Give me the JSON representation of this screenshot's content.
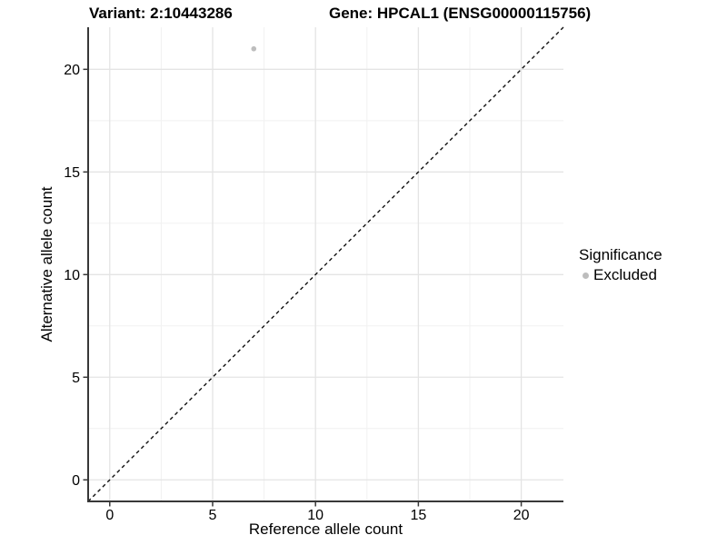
{
  "titles": {
    "variant": "Variant: 2:10443286",
    "gene": "Gene: HPCAL1 (ENSG00000115756)"
  },
  "chart_data": {
    "type": "scatter",
    "xlabel": "Reference allele count",
    "ylabel": "Alternative allele count",
    "xlim": [
      -1.05,
      22.05
    ],
    "ylim": [
      -1.05,
      22.05
    ],
    "x_ticks": [
      0,
      5,
      10,
      15,
      20
    ],
    "y_ticks": [
      0,
      5,
      10,
      15,
      20
    ],
    "x_minor_ticks": [
      2.5,
      7.5,
      12.5,
      17.5
    ],
    "y_minor_ticks": [
      2.5,
      7.5,
      12.5,
      17.5
    ],
    "grid": true,
    "legend_position": "right",
    "series": [
      {
        "name": "Excluded",
        "color": "#bdbdbd",
        "points": [
          {
            "x": 7,
            "y": 21
          }
        ]
      }
    ],
    "reference_line": {
      "name": "identity-line",
      "style": "dashed",
      "color": "#111111",
      "from_xy": [
        -1.05,
        -1.05
      ],
      "to_xy": [
        22.05,
        22.05
      ]
    }
  },
  "legend": {
    "title": "Significance",
    "items": [
      {
        "label": "Excluded",
        "color": "#bdbdbd",
        "marker": "circle"
      }
    ]
  },
  "colors": {
    "background": "#ffffff",
    "grid_major": "#e4e4e4",
    "grid_minor": "#f1f1f1",
    "axis_line": "#383838",
    "tick_label": "#000000",
    "point": "#bdbdbd"
  }
}
